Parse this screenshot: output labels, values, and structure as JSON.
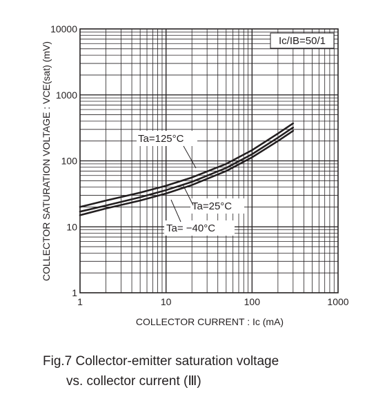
{
  "chart_data": {
    "type": "line",
    "x_scale": "log",
    "y_scale": "log",
    "xlim": [
      1,
      1000
    ],
    "ylim": [
      1,
      10000
    ],
    "x_ticks": [
      "1",
      "10",
      "100",
      "1000"
    ],
    "y_ticks": [
      "1",
      "10",
      "100",
      "1000",
      "10000"
    ],
    "xlabel": "COLLECTOR  CURRENT : Ic (mA)",
    "ylabel": "COLLECTOR  SATURATION  VOLTAGE : VCE(sat) (mV)",
    "legend_box": "Ic/IB=50/1",
    "grid": true,
    "series": [
      {
        "name": "Ta=125°C",
        "x": [
          1,
          2,
          5,
          10,
          20,
          50,
          100,
          200,
          300
        ],
        "y": [
          20,
          25,
          33,
          42,
          56,
          90,
          145,
          260,
          370
        ]
      },
      {
        "name": "Ta=25°C",
        "x": [
          1,
          2,
          5,
          10,
          20,
          50,
          100,
          200,
          300
        ],
        "y": [
          17,
          21,
          28,
          36,
          48,
          78,
          126,
          225,
          320
        ]
      },
      {
        "name": "Ta=−40°C",
        "x": [
          1,
          2,
          5,
          10,
          20,
          50,
          100,
          200,
          300
        ],
        "y": [
          15,
          19,
          25,
          32,
          43,
          70,
          113,
          200,
          285
        ]
      }
    ],
    "annotations": [
      "Ta=125°C",
      "Ta=25°C",
      "Ta= −40°C"
    ]
  },
  "caption": {
    "line1": "Fig.7  Collector-emitter saturation voltage",
    "line2": "vs. collector current (Ⅲ)"
  }
}
